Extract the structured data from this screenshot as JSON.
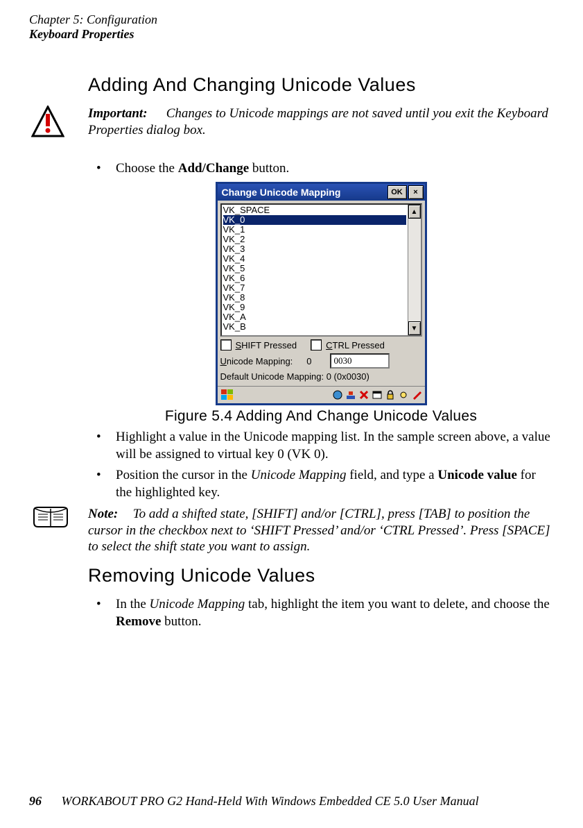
{
  "header": {
    "chapter": "Chapter 5: Configuration",
    "section": "Keyboard Properties"
  },
  "section1": {
    "title": "Adding And Changing Unicode Values",
    "important_label": "Important:",
    "important_text": "Changes to Unicode mappings are not saved until you exit the Keyboard Properties dialog box.",
    "bullet1a": "Choose the ",
    "bullet1b": "Add/Change",
    "bullet1c": " button."
  },
  "dialog": {
    "title": "Change Unicode Mapping",
    "ok": "OK",
    "close": "×",
    "list": [
      "VK_SPACE",
      "VK_0",
      "VK_1",
      "VK_2",
      "VK_3",
      "VK_4",
      "VK_5",
      "VK_6",
      "VK_7",
      "VK_8",
      "VK_9",
      "VK_A",
      "VK_B"
    ],
    "selected_index": 1,
    "shift_underline": "S",
    "shift_rest": "HIFT Pressed",
    "ctrl_underline": "C",
    "ctrl_rest": "TRL Pressed",
    "map_underline": "U",
    "map_rest": "nicode Mapping:",
    "map_char": "0",
    "map_value": "0030",
    "default_line": "Default Unicode Mapping:   0 (0x0030)",
    "scroll_up": "▲",
    "scroll_down": "▼"
  },
  "figure_caption": "Figure 5.4 Adding And Change Unicode Values",
  "after_fig": {
    "b2": "Highlight a value in the Unicode mapping list. In the sample screen above, a value will be assigned to virtual key 0 (VK 0).",
    "b3a": "Position the cursor in the ",
    "b3b": "Unicode Mapping",
    "b3c": " field, and type a ",
    "b3d": "Unicode value",
    "b3e": " for the highlighted key."
  },
  "note": {
    "label": "Note:",
    "text": "To add a shifted state, [SHIFT] and/or [CTRL], press [TAB] to position the cursor in the checkbox next to ‘SHIFT Pressed’ and/or ‘CTRL Pressed’. Press [SPACE] to select the shift state you want to assign."
  },
  "section2": {
    "title": "Removing Unicode Values",
    "b1a": "In the ",
    "b1b": "Unicode Mapping",
    "b1c": " tab, highlight the item you want to delete, and choose the ",
    "b1d": "Remove",
    "b1e": " button."
  },
  "footer": {
    "page": "96",
    "text": "WORKABOUT PRO G2 Hand-Held With Windows Embedded CE 5.0 User Manual"
  },
  "colors": {
    "titlebar_top": "#2a52b5",
    "titlebar_bottom": "#163a8a",
    "win_bg": "#d4d0c8",
    "selection": "#0a246a"
  }
}
